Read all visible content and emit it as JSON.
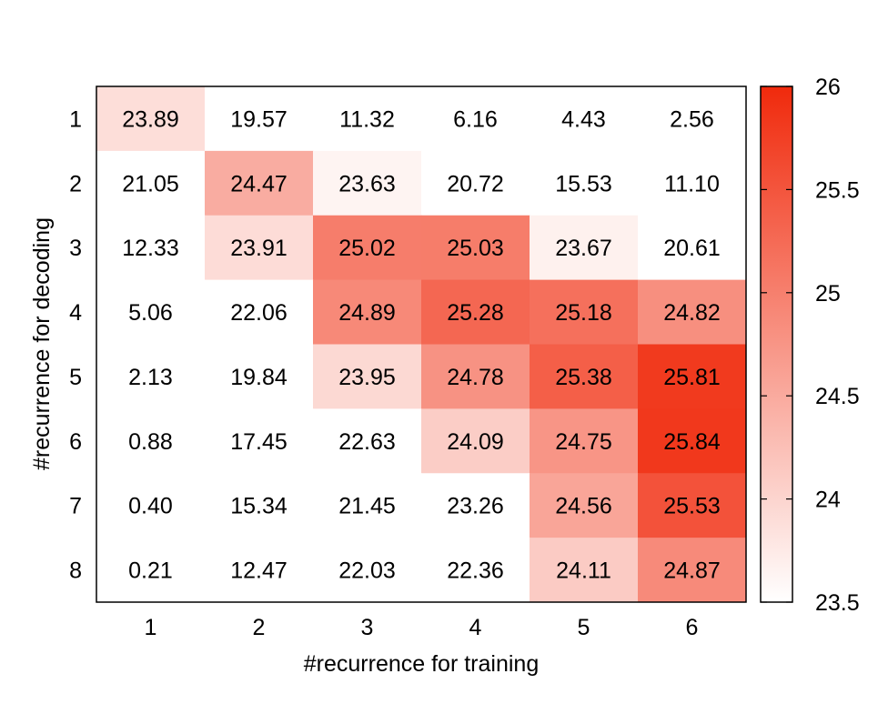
{
  "chart_data": {
    "type": "heatmap",
    "xlabel": "#recurrence for training",
    "ylabel": "#recurrence for decoding",
    "x_categories": [
      "1",
      "2",
      "3",
      "4",
      "5",
      "6"
    ],
    "y_categories": [
      "1",
      "2",
      "3",
      "4",
      "5",
      "6",
      "7",
      "8"
    ],
    "values": [
      [
        23.89,
        19.57,
        11.32,
        6.16,
        4.43,
        2.56
      ],
      [
        21.05,
        24.47,
        23.63,
        20.72,
        15.53,
        11.1
      ],
      [
        12.33,
        23.91,
        25.02,
        25.03,
        23.67,
        20.61
      ],
      [
        5.06,
        22.06,
        24.89,
        25.28,
        25.18,
        24.82
      ],
      [
        2.13,
        19.84,
        23.95,
        24.78,
        25.38,
        25.81
      ],
      [
        0.88,
        17.45,
        22.63,
        24.09,
        24.75,
        25.84
      ],
      [
        0.4,
        15.34,
        21.45,
        23.26,
        24.56,
        25.53
      ],
      [
        0.21,
        12.47,
        22.03,
        22.36,
        24.11,
        24.87
      ]
    ],
    "value_labels": [
      [
        "23.89",
        "19.57",
        "11.32",
        "6.16",
        "4.43",
        "2.56"
      ],
      [
        "21.05",
        "24.47",
        "23.63",
        "20.72",
        "15.53",
        "11.10"
      ],
      [
        "12.33",
        "23.91",
        "25.02",
        "25.03",
        "23.67",
        "20.61"
      ],
      [
        "5.06",
        "22.06",
        "24.89",
        "25.28",
        "25.18",
        "24.82"
      ],
      [
        "2.13",
        "19.84",
        "23.95",
        "24.78",
        "25.38",
        "25.81"
      ],
      [
        "0.88",
        "17.45",
        "22.63",
        "24.09",
        "24.75",
        "25.84"
      ],
      [
        "0.40",
        "15.34",
        "21.45",
        "23.26",
        "24.56",
        "25.53"
      ],
      [
        "0.21",
        "12.47",
        "22.03",
        "22.36",
        "24.11",
        "24.87"
      ]
    ],
    "colorbar": {
      "range": [
        23.5,
        26
      ],
      "ticks": [
        "23.5",
        "24",
        "24.5",
        "25",
        "25.5",
        "26"
      ],
      "low_color": "#ffffff",
      "high_color": "#f02a0c"
    },
    "grid": false
  }
}
